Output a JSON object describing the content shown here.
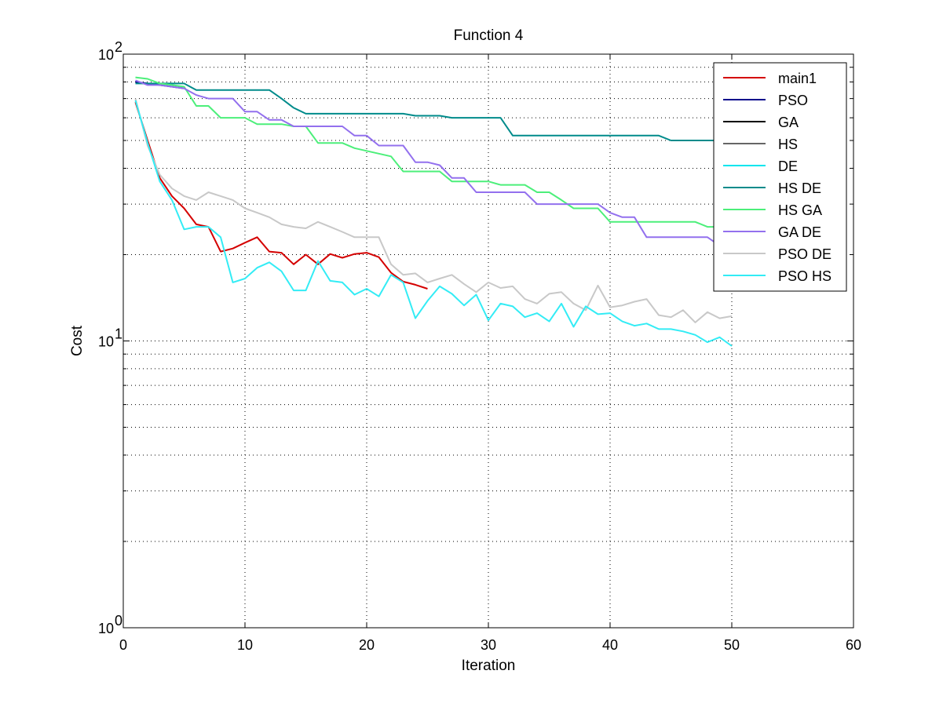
{
  "chart_data": {
    "type": "line",
    "title": "Function 4",
    "xlabel": "Iteration",
    "ylabel": "Cost",
    "xlim": [
      0,
      60
    ],
    "ylim": [
      1,
      100
    ],
    "yscale": "log",
    "grid": true,
    "legend_position": "top-right",
    "x_ticks": [
      "0",
      "10",
      "20",
      "30",
      "40",
      "50",
      "60"
    ],
    "y_ticks": [
      {
        "base": "10",
        "exp": "0"
      },
      {
        "base": "10",
        "exp": "1"
      },
      {
        "base": "10",
        "exp": "2"
      }
    ],
    "series": [
      {
        "name": "main1",
        "color": "#d40000",
        "x": [
          1,
          2,
          3,
          4,
          5,
          6,
          7,
          8,
          9,
          10,
          11,
          12,
          13,
          14,
          15,
          16,
          17,
          18,
          19,
          20,
          21,
          22,
          23,
          24,
          25
        ],
        "y": [
          68,
          50,
          37,
          32,
          29,
          25.5,
          25,
          20.5,
          21,
          22,
          23,
          20.5,
          20.3,
          18.5,
          20,
          18.5,
          20.1,
          19.5,
          20.1,
          20.3,
          19.6,
          17.3,
          16.1,
          15.7,
          15.2
        ]
      },
      {
        "name": "PSO",
        "color": "#00008b",
        "x": [
          1,
          2,
          3,
          4,
          5
        ],
        "y": [
          80,
          79,
          78,
          77,
          76
        ]
      },
      {
        "name": "GA",
        "color": "#000000",
        "x": [],
        "y": []
      },
      {
        "name": "HS",
        "color": "#666666",
        "x": [],
        "y": []
      },
      {
        "name": "DE",
        "color": "#00e5ee",
        "x": [],
        "y": []
      },
      {
        "name": "HS DE",
        "color": "#008b8b",
        "x": [
          1,
          2,
          3,
          4,
          5,
          6,
          7,
          8,
          9,
          10,
          11,
          12,
          13,
          14,
          15,
          16,
          17,
          18,
          19,
          20,
          21,
          22,
          23,
          24,
          25,
          26,
          27,
          28,
          29,
          30,
          31,
          32,
          33,
          34,
          35,
          36,
          37,
          38,
          39,
          40,
          41,
          42,
          43,
          44,
          45,
          46,
          47,
          48,
          49,
          50
        ],
        "y": [
          79,
          79,
          79,
          79,
          79,
          75,
          75,
          75,
          75,
          75,
          75,
          75,
          70,
          65,
          62,
          62,
          62,
          62,
          62,
          62,
          62,
          62,
          62,
          61,
          61,
          61,
          60,
          60,
          60,
          60,
          60,
          52,
          52,
          52,
          52,
          52,
          52,
          52,
          52,
          52,
          52,
          52,
          52,
          52,
          50,
          50,
          50,
          50,
          50,
          50
        ]
      },
      {
        "name": "HS GA",
        "color": "#4cef7a",
        "x": [
          1,
          2,
          3,
          4,
          5,
          6,
          7,
          8,
          9,
          10,
          11,
          12,
          13,
          14,
          15,
          16,
          17,
          18,
          19,
          20,
          21,
          22,
          23,
          24,
          25,
          26,
          27,
          28,
          29,
          30,
          31,
          32,
          33,
          34,
          35,
          36,
          37,
          38,
          39,
          40,
          41,
          42,
          43,
          44,
          45,
          46,
          47,
          48,
          49
        ],
        "y": [
          83,
          82,
          79,
          78,
          77,
          66,
          66,
          60,
          60,
          60,
          57,
          57,
          57,
          56,
          56,
          49,
          49,
          49,
          47,
          46,
          45,
          44,
          39,
          39,
          39,
          39,
          36,
          36,
          36,
          36,
          35,
          35,
          35,
          33,
          33,
          31,
          29,
          29,
          29,
          26,
          26,
          26,
          26,
          26,
          26,
          26,
          26,
          25,
          25
        ]
      },
      {
        "name": "GA DE",
        "color": "#9370ee",
        "x": [
          1,
          2,
          3,
          4,
          5,
          6,
          7,
          8,
          9,
          10,
          11,
          12,
          13,
          14,
          15,
          16,
          17,
          18,
          19,
          20,
          21,
          22,
          23,
          24,
          25,
          26,
          27,
          28,
          29,
          30,
          31,
          32,
          33,
          34,
          35,
          36,
          37,
          38,
          39,
          40,
          41,
          42,
          43,
          44,
          45,
          46,
          47,
          48,
          49
        ],
        "y": [
          81,
          78,
          78,
          77,
          76,
          72,
          70,
          70,
          70,
          63,
          63,
          59,
          59,
          56,
          56,
          56,
          56,
          56,
          52,
          52,
          48,
          48,
          48,
          42,
          42,
          41,
          37,
          37,
          33,
          33,
          33,
          33,
          33,
          30,
          30,
          30,
          30,
          30,
          30,
          28,
          27,
          27,
          23,
          23,
          23,
          23,
          23,
          23,
          21.5
        ]
      },
      {
        "name": "PSO DE",
        "color": "#c8c8c8",
        "x": [
          1,
          2,
          3,
          4,
          5,
          6,
          7,
          8,
          9,
          10,
          11,
          12,
          13,
          14,
          15,
          16,
          17,
          18,
          19,
          20,
          21,
          22,
          23,
          24,
          25,
          26,
          27,
          28,
          29,
          30,
          31,
          32,
          33,
          34,
          35,
          36,
          37,
          38,
          39,
          40,
          41,
          42,
          43,
          44,
          45,
          46,
          47,
          48,
          49,
          50
        ],
        "y": [
          70,
          48,
          38,
          34,
          32,
          31,
          33,
          32,
          31,
          29,
          28,
          27,
          25.5,
          25,
          24.7,
          26,
          25,
          24,
          23,
          23,
          23,
          18.5,
          17,
          17.2,
          16,
          16.5,
          17,
          15.8,
          14.8,
          16,
          15.3,
          15.5,
          14,
          13.5,
          14.6,
          14.8,
          13.5,
          12.8,
          15.6,
          13.1,
          13.3,
          13.7,
          14,
          12.3,
          12.1,
          12.8,
          11.6,
          12.6,
          12,
          12.2
        ]
      },
      {
        "name": "PSO HS",
        "color": "#33ecf5",
        "x": [
          1,
          2,
          3,
          4,
          5,
          6,
          7,
          8,
          9,
          10,
          11,
          12,
          13,
          14,
          15,
          16,
          17,
          18,
          19,
          20,
          21,
          22,
          23,
          24,
          25,
          26,
          27,
          28,
          29,
          30,
          31,
          32,
          33,
          34,
          35,
          36,
          37,
          38,
          39,
          40,
          41,
          42,
          43,
          44,
          45,
          46,
          47,
          48,
          49,
          50
        ],
        "y": [
          69,
          49,
          36,
          31,
          24.5,
          25,
          25,
          23,
          16,
          16.5,
          18,
          18.8,
          17.5,
          15,
          15,
          19,
          16.2,
          16,
          14.5,
          15.2,
          14.3,
          17,
          16,
          12,
          13.8,
          15.5,
          14.6,
          13.3,
          14.5,
          11.8,
          13.5,
          13.2,
          12.1,
          12.5,
          11.7,
          13.5,
          11.2,
          13.2,
          12.4,
          12.5,
          11.7,
          11.3,
          11.5,
          11,
          11,
          10.8,
          10.5,
          9.9,
          10.3,
          9.6
        ]
      }
    ]
  }
}
